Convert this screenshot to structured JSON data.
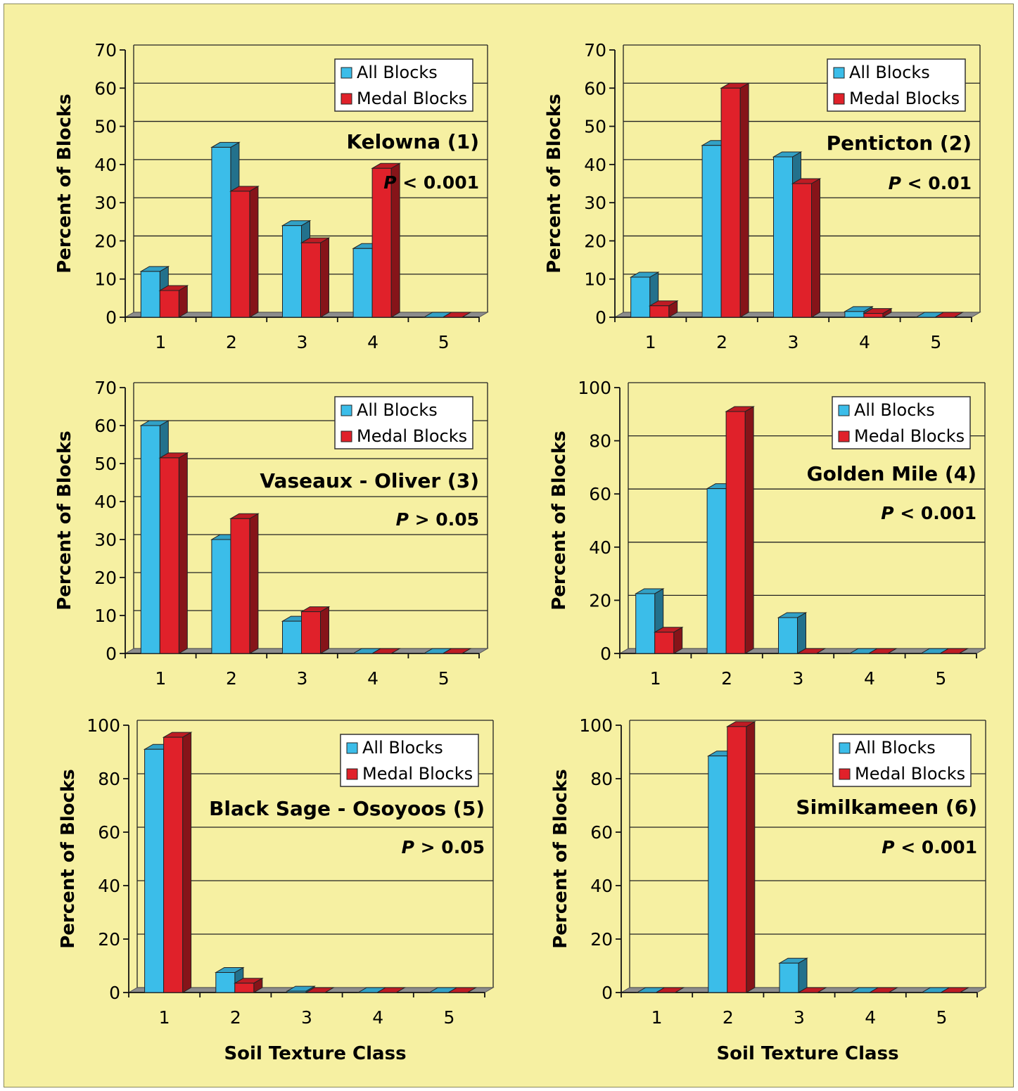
{
  "colors": {
    "background": "#f6f0a2",
    "all_blocks": "#3bbde9",
    "medal_blocks": "#e0212a",
    "floor": "#8c8c8c"
  },
  "chart_data": [
    {
      "type": "bar",
      "title": "Kelowna (1)",
      "annotation": {
        "italic": "P",
        "rest": " < 0.001"
      },
      "xlabel": "",
      "ylabel": "Percent of Blocks",
      "categories": [
        "1",
        "2",
        "3",
        "4",
        "5"
      ],
      "ylim": [
        0,
        70
      ],
      "yticks": [
        0,
        10,
        20,
        30,
        40,
        50,
        60,
        70
      ],
      "legend_position": "top-right",
      "series": [
        {
          "name": "All Blocks",
          "values": [
            12,
            44.5,
            24,
            18,
            0
          ]
        },
        {
          "name": "Medal Blocks",
          "values": [
            7,
            33,
            19.5,
            39,
            0
          ]
        }
      ]
    },
    {
      "type": "bar",
      "title": "Penticton (2)",
      "annotation": {
        "italic": "P",
        "rest": " < 0.01"
      },
      "xlabel": "",
      "ylabel": "Percent of Blocks",
      "categories": [
        "1",
        "2",
        "3",
        "4",
        "5"
      ],
      "ylim": [
        0,
        70
      ],
      "yticks": [
        0,
        10,
        20,
        30,
        40,
        50,
        60,
        70
      ],
      "legend_position": "top-right",
      "series": [
        {
          "name": "All Blocks",
          "values": [
            10.5,
            45,
            42,
            1.5,
            0
          ]
        },
        {
          "name": "Medal Blocks",
          "values": [
            3,
            60,
            35,
            1,
            0
          ]
        }
      ]
    },
    {
      "type": "bar",
      "title": "Vaseaux - Oliver (3)",
      "annotation": {
        "italic": "P",
        "rest": " > 0.05"
      },
      "xlabel": "",
      "ylabel": "Percent of Blocks",
      "categories": [
        "1",
        "2",
        "3",
        "4",
        "5"
      ],
      "ylim": [
        0,
        70
      ],
      "yticks": [
        0,
        10,
        20,
        30,
        40,
        50,
        60,
        70
      ],
      "legend_position": "top-right",
      "series": [
        {
          "name": "All Blocks",
          "values": [
            60,
            30,
            8.5,
            0,
            0
          ]
        },
        {
          "name": "Medal Blocks",
          "values": [
            51.5,
            35.5,
            11,
            0,
            0
          ]
        }
      ]
    },
    {
      "type": "bar",
      "title": "Golden Mile (4)",
      "annotation": {
        "italic": "P",
        "rest": " < 0.001"
      },
      "xlabel": "",
      "ylabel": "Percent of Blocks",
      "categories": [
        "1",
        "2",
        "3",
        "4",
        "5"
      ],
      "ylim": [
        0,
        100
      ],
      "yticks": [
        0,
        20,
        40,
        60,
        80,
        100
      ],
      "legend_position": "top-right",
      "series": [
        {
          "name": "All Blocks",
          "values": [
            22.5,
            62,
            13.5,
            0,
            0
          ]
        },
        {
          "name": "Medal Blocks",
          "values": [
            8,
            91,
            0,
            0,
            0
          ]
        }
      ]
    },
    {
      "type": "bar",
      "title": "Black Sage - Osoyoos (5)",
      "annotation": {
        "italic": "P",
        "rest": " > 0.05"
      },
      "xlabel": "Soil Texture Class",
      "ylabel": "Percent of Blocks",
      "categories": [
        "1",
        "2",
        "3",
        "4",
        "5"
      ],
      "ylim": [
        0,
        100
      ],
      "yticks": [
        0,
        20,
        40,
        60,
        80,
        100
      ],
      "legend_position": "top-right",
      "series": [
        {
          "name": "All Blocks",
          "values": [
            91,
            7.5,
            0.5,
            0,
            0
          ]
        },
        {
          "name": "Medal Blocks",
          "values": [
            95.5,
            3.5,
            0,
            0,
            0
          ]
        }
      ]
    },
    {
      "type": "bar",
      "title": "Similkameen (6)",
      "annotation": {
        "italic": "P",
        "rest": " < 0.001"
      },
      "xlabel": "Soil Texture Class",
      "ylabel": "Percent of Blocks",
      "categories": [
        "1",
        "2",
        "3",
        "4",
        "5"
      ],
      "ylim": [
        0,
        100
      ],
      "yticks": [
        0,
        20,
        40,
        60,
        80,
        100
      ],
      "legend_position": "top-right",
      "series": [
        {
          "name": "All Blocks",
          "values": [
            0,
            88.5,
            11,
            0,
            0
          ]
        },
        {
          "name": "Medal Blocks",
          "values": [
            0,
            99.5,
            0,
            0,
            0
          ]
        }
      ]
    }
  ]
}
